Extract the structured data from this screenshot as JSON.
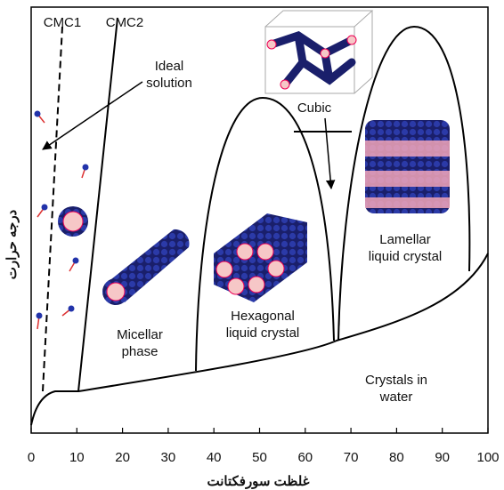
{
  "chart_data": {
    "type": "phase-diagram",
    "xlabel": "غلظت سورفکتانت",
    "ylabel": "درجه حرارت",
    "xlim": [
      0,
      100
    ],
    "xticks": [
      0,
      10,
      20,
      30,
      40,
      50,
      60,
      70,
      80,
      90,
      100
    ],
    "labels": {
      "cmc1": [
        "CMC1"
      ],
      "cmc2": [
        "CMC2"
      ],
      "ideal": [
        "Ideal",
        "solution"
      ],
      "cubic": [
        "Cubic"
      ],
      "lamellar": [
        "Lamellar",
        "liquid crystal"
      ],
      "hexagonal": [
        "Hexagonal",
        "liquid crystal"
      ],
      "micellar": [
        "Micellar",
        "phase"
      ],
      "crystals": [
        "Crystals in",
        "water"
      ]
    }
  }
}
